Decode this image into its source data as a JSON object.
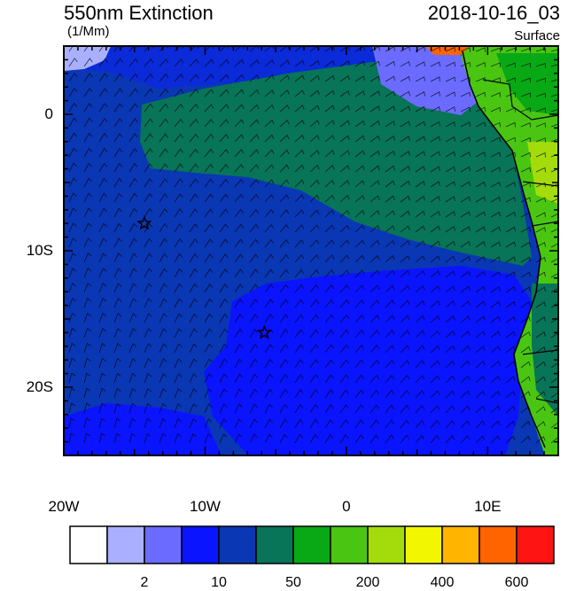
{
  "header": {
    "left_title": "550nm Extinction",
    "left_units": "(1/Mm)",
    "right_title": "2018-10-16_03",
    "right_level": "Surface"
  },
  "axes": {
    "x_ticks": [
      {
        "value": -20,
        "label": "20W"
      },
      {
        "value": -10,
        "label": "10W"
      },
      {
        "value": 0,
        "label": "0"
      },
      {
        "value": 10,
        "label": "10E"
      }
    ],
    "y_ticks": [
      {
        "value": 0,
        "label": "0"
      },
      {
        "value": -10,
        "label": "10S"
      },
      {
        "value": -20,
        "label": "20S"
      }
    ],
    "lon_range": [
      -20,
      15
    ],
    "lat_range": [
      -25,
      5
    ]
  },
  "markers": [
    {
      "name": "star-marker",
      "lon": -14.3,
      "lat": -8.0
    },
    {
      "name": "star-marker",
      "lon": -5.8,
      "lat": -16.0
    }
  ],
  "colorbar": {
    "colors": [
      "#ffffff",
      "#aab0ff",
      "#6b6bff",
      "#0a14ff",
      "#0a37b4",
      "#087458",
      "#08a914",
      "#4ac612",
      "#a3dc0a",
      "#f2f700",
      "#ffb400",
      "#ff6400",
      "#ff1414"
    ],
    "labels": [
      {
        "after_box": 1,
        "text": "2"
      },
      {
        "after_box": 3,
        "text": "10"
      },
      {
        "after_box": 5,
        "text": "50"
      },
      {
        "after_box": 7,
        "text": "200"
      },
      {
        "after_box": 9,
        "text": "400"
      },
      {
        "after_box": 11,
        "text": "600"
      }
    ]
  }
}
